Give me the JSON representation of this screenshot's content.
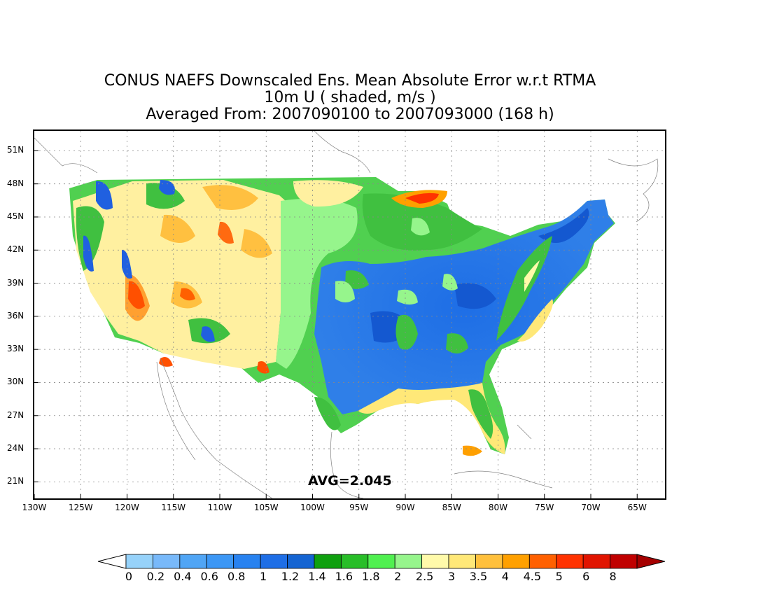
{
  "title": {
    "line1": "CONUS NAEFS Downscaled Ens. Mean Absolute Error w.r.t RTMA",
    "line2": "10m U ( shaded, m/s )",
    "line3": "Averaged From: 2007090100 to 2007093000 (168 h)"
  },
  "map": {
    "lon_range": [
      -130,
      -62
    ],
    "lat_range": [
      19.5,
      52.8
    ],
    "lat_ticks": [
      "51N",
      "48N",
      "45N",
      "42N",
      "39N",
      "36N",
      "33N",
      "30N",
      "27N",
      "24N",
      "21N"
    ],
    "lat_values": [
      51,
      48,
      45,
      42,
      39,
      36,
      33,
      30,
      27,
      24,
      21
    ],
    "lon_ticks": [
      "130W",
      "125W",
      "120W",
      "115W",
      "110W",
      "105W",
      "100W",
      "95W",
      "90W",
      "85W",
      "80W",
      "75W",
      "70W",
      "65W"
    ],
    "lon_values": [
      -130,
      -125,
      -120,
      -115,
      -110,
      -105,
      -100,
      -95,
      -90,
      -85,
      -80,
      -75,
      -70,
      -65
    ],
    "grid": "dotted",
    "annotation": "AVG=2.045"
  },
  "colorbar": {
    "labels": [
      "0",
      "0.2",
      "0.4",
      "0.6",
      "0.8",
      "1",
      "1.2",
      "1.4",
      "1.6",
      "1.8",
      "2",
      "2.5",
      "3",
      "3.5",
      "4",
      "4.5",
      "5",
      "6",
      "8"
    ],
    "colors": [
      "#96d2fa",
      "#78b9fa",
      "#50a5f5",
      "#3c97f5",
      "#2882f0",
      "#1e6ee6",
      "#1464d2",
      "#0fa00f",
      "#28be28",
      "#50f050",
      "#96f58c",
      "#fffaaa",
      "#ffe878",
      "#ffc03c",
      "#ffa000",
      "#ff6000",
      "#ff3200",
      "#e11400",
      "#c00000"
    ],
    "under_color": "#ffffff",
    "over_color": "#a50000"
  }
}
